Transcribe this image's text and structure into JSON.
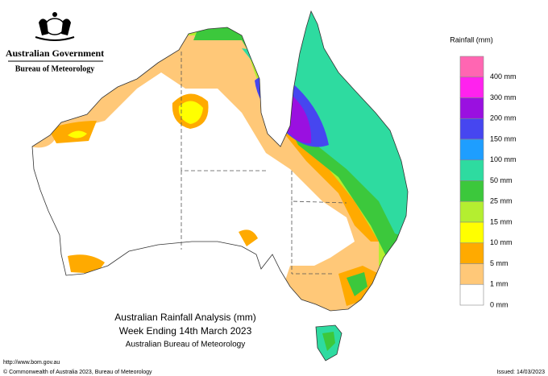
{
  "header": {
    "government": "Australian Government",
    "bureau": "Bureau of Meteorology"
  },
  "legend": {
    "title": "Rainfall (mm)",
    "colors": [
      "#ff66b2",
      "#ff22ee",
      "#9a10e0",
      "#4646f0",
      "#1e9eff",
      "#2edba0",
      "#3cc83c",
      "#b4ee30",
      "#ffff00",
      "#ffaa00",
      "#ffc878",
      "#ffffff"
    ],
    "labels": [
      "400 mm",
      "300 mm",
      "200 mm",
      "150 mm",
      "100 mm",
      "50 mm",
      "25 mm",
      "15 mm",
      "10 mm",
      "5 mm",
      "1 mm",
      "0 mm"
    ]
  },
  "map_title": {
    "line1": "Australian Rainfall Analysis (mm)",
    "line2": "Week Ending 14th March 2023",
    "line3": "Australian Bureau of Meteorology"
  },
  "footer": {
    "url": "http://www.bom.gov.au",
    "copyright": "© Commonwealth of Australia 2023, Bureau of Meteorology",
    "issued": "Issued: 14/03/2023"
  }
}
